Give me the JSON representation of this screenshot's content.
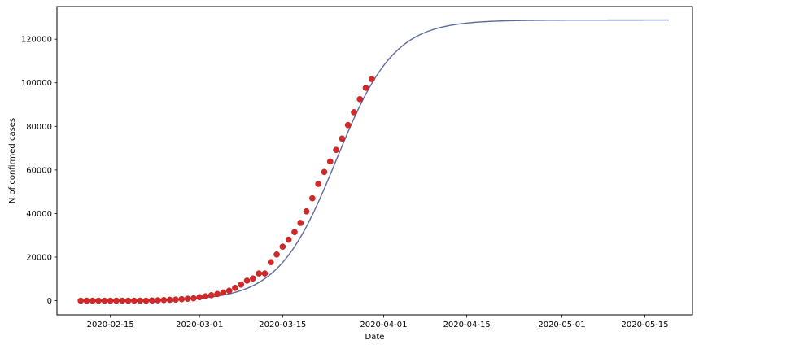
{
  "chart_data": {
    "type": "scatter",
    "title": "",
    "xlabel": "Date",
    "ylabel": "N of confirmed cases",
    "x_type": "date",
    "xlim": [
      "2020-02-06",
      "2020-05-23"
    ],
    "ylim": [
      -6500,
      135000
    ],
    "x_tick_labels": [
      "2020-02-15",
      "2020-03-01",
      "2020-03-15",
      "2020-04-01",
      "2020-04-15",
      "2020-05-01",
      "2020-05-15"
    ],
    "y_ticks": [
      0,
      20000,
      40000,
      60000,
      80000,
      100000,
      120000
    ],
    "grid": false,
    "legend": "none",
    "colors": {
      "observed": "#d62728",
      "fit": "#5b6a9a"
    },
    "fit_curve": {
      "model": "logistic",
      "K": 128800,
      "midpoint": "2020-03-24",
      "growth_rate_per_day": 0.205,
      "x_range": [
        "2020-02-10",
        "2020-05-19"
      ]
    },
    "series": [
      {
        "x": [
          "2020-02-10",
          "2020-02-11",
          "2020-02-12",
          "2020-02-13",
          "2020-02-14",
          "2020-02-15",
          "2020-02-16",
          "2020-02-17",
          "2020-02-18",
          "2020-02-19",
          "2020-02-20",
          "2020-02-21",
          "2020-02-22",
          "2020-02-23",
          "2020-02-24",
          "2020-02-25",
          "2020-02-26",
          "2020-02-27",
          "2020-02-28",
          "2020-02-29",
          "2020-03-01",
          "2020-03-02",
          "2020-03-03",
          "2020-03-04",
          "2020-03-05",
          "2020-03-06",
          "2020-03-07",
          "2020-03-08",
          "2020-03-09",
          "2020-03-10",
          "2020-03-11",
          "2020-03-12",
          "2020-03-13",
          "2020-03-14",
          "2020-03-15",
          "2020-03-16",
          "2020-03-17",
          "2020-03-18",
          "2020-03-19",
          "2020-03-20",
          "2020-03-21",
          "2020-03-22",
          "2020-03-23",
          "2020-03-24",
          "2020-03-25",
          "2020-03-26",
          "2020-03-27",
          "2020-03-28",
          "2020-03-29",
          "2020-03-30"
        ],
        "y": [
          0,
          0,
          0,
          0,
          0,
          0,
          0,
          0,
          0,
          0,
          0,
          0,
          100,
          200,
          300,
          400,
          500,
          700,
          900,
          1100,
          1600,
          2000,
          2500,
          3100,
          3800,
          4600,
          5900,
          7400,
          9200,
          10200,
          12500,
          12500,
          17700,
          21200,
          24800,
          28000,
          31500,
          35700,
          41000,
          47000,
          53600,
          59100,
          63900,
          69200,
          74400,
          80600,
          86500,
          92500,
          97700,
          101700
        ]
      }
    ]
  }
}
